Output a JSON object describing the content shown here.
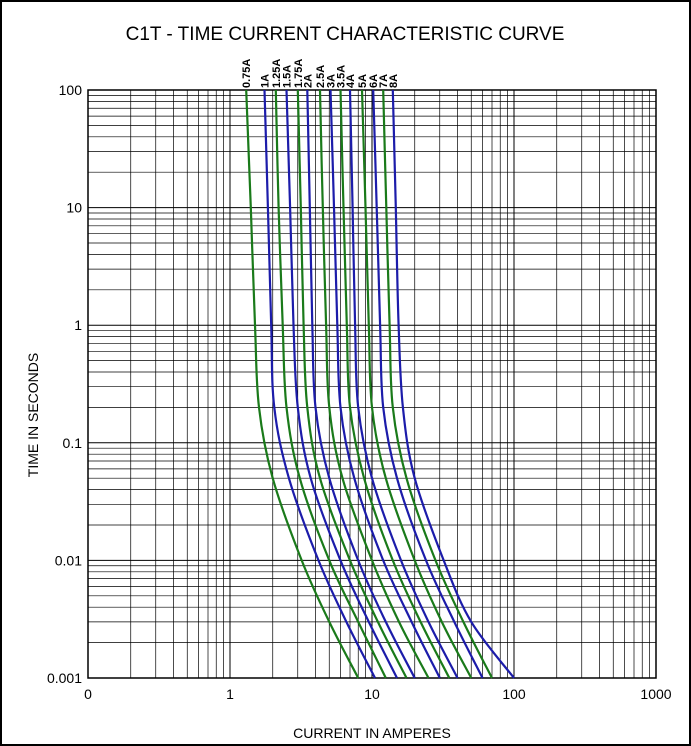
{
  "chart_data": {
    "type": "line",
    "title": "C1T - TIME CURRENT CHARACTERISTIC CURVE",
    "xlabel": "CURRENT IN AMPERES",
    "ylabel": "TIME IN SECONDS",
    "x_scale": "log",
    "y_scale": "log",
    "xlim": [
      0.1,
      1000
    ],
    "ylim": [
      0.001,
      100
    ],
    "x_tick_labels": [
      "0",
      "1",
      "10",
      "100",
      "1000"
    ],
    "y_tick_labels": [
      "0.001",
      "0.01",
      "0.1",
      "1",
      "10",
      "100"
    ],
    "grid": true,
    "colors": {
      "green": "#1a7a1a",
      "blue": "#1c1caa"
    },
    "series": [
      {
        "name": "0.75A",
        "color": "green",
        "points": [
          [
            1.3,
            100
          ],
          [
            1.4,
            10
          ],
          [
            1.5,
            1
          ],
          [
            1.6,
            0.2
          ],
          [
            2.0,
            0.05
          ],
          [
            3.2,
            0.01
          ],
          [
            5.0,
            0.003
          ],
          [
            8.0,
            0.001
          ]
        ]
      },
      {
        "name": "1A",
        "color": "blue",
        "points": [
          [
            1.75,
            100
          ],
          [
            1.85,
            10
          ],
          [
            1.95,
            1
          ],
          [
            2.05,
            0.2
          ],
          [
            2.6,
            0.05
          ],
          [
            4.2,
            0.01
          ],
          [
            6.6,
            0.003
          ],
          [
            10.5,
            0.001
          ]
        ]
      },
      {
        "name": "1.25A",
        "color": "green",
        "points": [
          [
            2.1,
            100
          ],
          [
            2.2,
            10
          ],
          [
            2.35,
            1
          ],
          [
            2.5,
            0.2
          ],
          [
            3.1,
            0.05
          ],
          [
            5.0,
            0.01
          ],
          [
            8.0,
            0.003
          ],
          [
            12.5,
            0.001
          ]
        ]
      },
      {
        "name": "1.5A",
        "color": "blue",
        "points": [
          [
            2.5,
            100
          ],
          [
            2.65,
            10
          ],
          [
            2.8,
            1
          ],
          [
            3.0,
            0.2
          ],
          [
            3.7,
            0.05
          ],
          [
            6.0,
            0.01
          ],
          [
            9.5,
            0.003
          ],
          [
            15,
            0.001
          ]
        ]
      },
      {
        "name": "1.75A",
        "color": "green",
        "points": [
          [
            3.0,
            100
          ],
          [
            3.15,
            10
          ],
          [
            3.3,
            1
          ],
          [
            3.5,
            0.2
          ],
          [
            4.3,
            0.05
          ],
          [
            7.0,
            0.01
          ],
          [
            11,
            0.003
          ],
          [
            17.5,
            0.001
          ]
        ]
      },
      {
        "name": "2A",
        "color": "blue",
        "points": [
          [
            3.5,
            100
          ],
          [
            3.65,
            10
          ],
          [
            3.8,
            1
          ],
          [
            4.0,
            0.2
          ],
          [
            5.0,
            0.05
          ],
          [
            8.0,
            0.01
          ],
          [
            12.5,
            0.003
          ],
          [
            20,
            0.001
          ]
        ]
      },
      {
        "name": "2.5A",
        "color": "green",
        "points": [
          [
            4.3,
            100
          ],
          [
            4.5,
            10
          ],
          [
            4.75,
            1
          ],
          [
            5.0,
            0.2
          ],
          [
            6.2,
            0.05
          ],
          [
            10,
            0.01
          ],
          [
            15.5,
            0.003
          ],
          [
            25,
            0.001
          ]
        ]
      },
      {
        "name": "3A",
        "color": "blue",
        "points": [
          [
            5.1,
            100
          ],
          [
            5.4,
            10
          ],
          [
            5.7,
            1
          ],
          [
            6.0,
            0.2
          ],
          [
            7.5,
            0.05
          ],
          [
            12,
            0.01
          ],
          [
            19,
            0.003
          ],
          [
            30,
            0.001
          ]
        ]
      },
      {
        "name": "3.5A",
        "color": "green",
        "points": [
          [
            6.0,
            100
          ],
          [
            6.3,
            10
          ],
          [
            6.65,
            1
          ],
          [
            7.0,
            0.2
          ],
          [
            8.8,
            0.05
          ],
          [
            14,
            0.01
          ],
          [
            22,
            0.003
          ],
          [
            35,
            0.001
          ]
        ]
      },
      {
        "name": "4A",
        "color": "blue",
        "points": [
          [
            7.0,
            100
          ],
          [
            7.3,
            10
          ],
          [
            7.6,
            1
          ],
          [
            8.0,
            0.2
          ],
          [
            10,
            0.05
          ],
          [
            16,
            0.01
          ],
          [
            25,
            0.003
          ],
          [
            40,
            0.001
          ]
        ]
      },
      {
        "name": "5A",
        "color": "green",
        "points": [
          [
            8.5,
            100
          ],
          [
            9.0,
            10
          ],
          [
            9.5,
            1
          ],
          [
            10,
            0.2
          ],
          [
            12.5,
            0.05
          ],
          [
            20,
            0.01
          ],
          [
            31,
            0.003
          ],
          [
            50,
            0.001
          ]
        ]
      },
      {
        "name": "6A",
        "color": "blue",
        "points": [
          [
            10.2,
            100
          ],
          [
            10.8,
            10
          ],
          [
            11.4,
            1
          ],
          [
            12,
            0.2
          ],
          [
            15,
            0.05
          ],
          [
            24,
            0.01
          ],
          [
            38,
            0.003
          ],
          [
            60,
            0.001
          ]
        ]
      },
      {
        "name": "7A",
        "color": "green",
        "points": [
          [
            12,
            100
          ],
          [
            12.6,
            10
          ],
          [
            13.3,
            1
          ],
          [
            14,
            0.2
          ],
          [
            17.5,
            0.05
          ],
          [
            28,
            0.01
          ],
          [
            44,
            0.003
          ],
          [
            70,
            0.001
          ]
        ]
      },
      {
        "name": "8A",
        "color": "blue",
        "points": [
          [
            14,
            100
          ],
          [
            14.7,
            10
          ],
          [
            15.4,
            1
          ],
          [
            16.5,
            0.2
          ],
          [
            20,
            0.05
          ],
          [
            32,
            0.01
          ],
          [
            50,
            0.003
          ],
          [
            100,
            0.001
          ]
        ]
      }
    ]
  }
}
